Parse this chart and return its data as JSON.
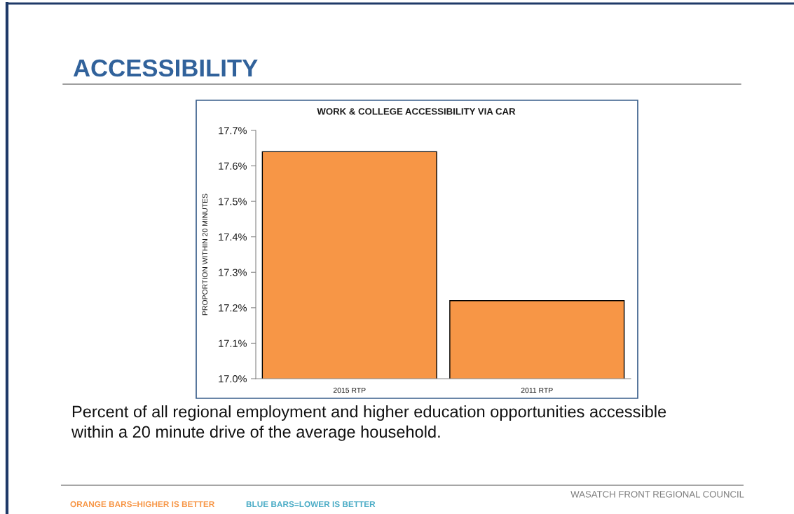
{
  "chart_data": {
    "type": "bar",
    "title": "ACCESSIBILITY",
    "subtitle": "WORK & COLLEGE ACCESSIBILITY VIA CAR",
    "ylabel": "PROPORTION WITHIN 20 MINUTES",
    "categories": [
      "2015 RTP",
      "2011 RTP"
    ],
    "values": [
      17.64,
      17.22
    ],
    "color": "#f79646",
    "ylim": [
      17.0,
      17.7
    ],
    "yticks": [
      {
        "value": 17.0,
        "label": "17.0%"
      },
      {
        "value": 17.1,
        "label": "17.1%"
      },
      {
        "value": 17.2,
        "label": "17.2%"
      },
      {
        "value": 17.3,
        "label": "17.3%"
      },
      {
        "value": 17.4,
        "label": "17.4%"
      },
      {
        "value": 17.5,
        "label": "17.5%"
      },
      {
        "value": 17.6,
        "label": "17.6%"
      },
      {
        "value": 17.7,
        "label": "17.7%"
      }
    ],
    "annotations": [
      "Percent of all regional employment and higher education opportunities accessible within a 20 minute drive of the average household.",
      "ORANGE BARS=HIGHER IS BETTER",
      "BLUE BARS=LOWER IS BETTER",
      "WASATCH FRONT REGIONAL COUNCIL"
    ]
  }
}
